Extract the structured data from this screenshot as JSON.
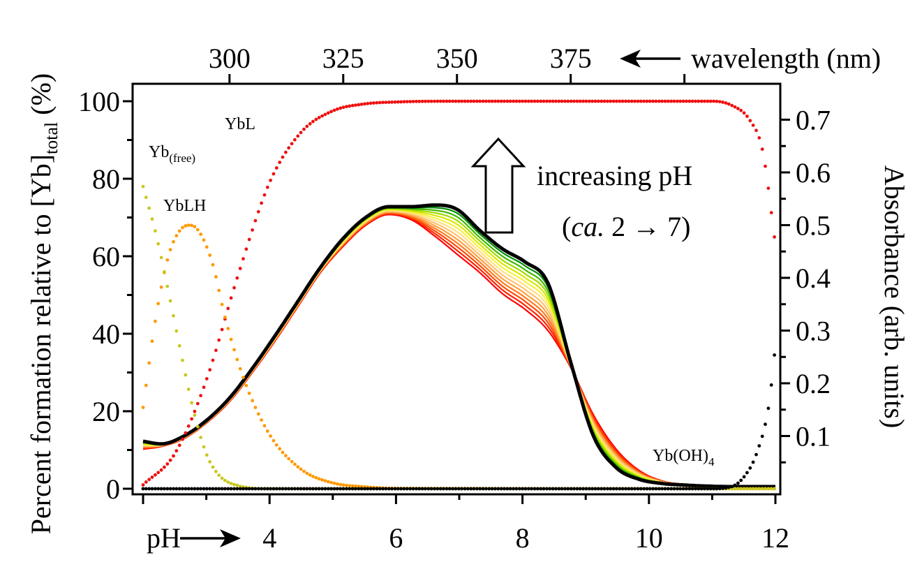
{
  "chart_data": {
    "type": "line",
    "bottom_axis": {
      "prefix_label": "pH",
      "range": [
        2,
        12
      ],
      "ticks": [
        "4",
        "6",
        "8",
        "10",
        "12"
      ],
      "tick_values": [
        4,
        6,
        8,
        10,
        12
      ]
    },
    "left_axis": {
      "label_main": "Percent formation relative to [Yb]",
      "label_sub": "total",
      "label_unit": "(%)",
      "range": [
        0,
        100
      ],
      "ticks": [
        "0",
        "20",
        "40",
        "60",
        "80",
        "100"
      ],
      "tick_values": [
        0,
        20,
        40,
        60,
        80,
        100
      ]
    },
    "top_axis": {
      "label": "wavelength (nm)",
      "ticks": [
        "300",
        "325",
        "350",
        "375"
      ],
      "tick_values": [
        300,
        325,
        350,
        375
      ],
      "range": [
        281,
        420
      ]
    },
    "right_axis": {
      "label": "Absorbance (arb. units)",
      "range": [
        0,
        0.735
      ],
      "ticks": [
        "0.1",
        "0.2",
        "0.3",
        "0.4",
        "0.5",
        "0.6",
        "0.7"
      ],
      "tick_values": [
        0.1,
        0.2,
        0.3,
        0.4,
        0.5,
        0.6,
        0.7
      ]
    },
    "annotations": {
      "increasing_line1": "increasing pH",
      "increasing_line2_italic": "ca.",
      "increasing_line2_rest": " 2 → 7)",
      "increasing_line2_open": "(",
      "yb_free_main": "Yb",
      "yb_free_sub": "(free)",
      "ybl": "YbL",
      "yblh": "YbLH",
      "yboh4_main": "Yb(OH)",
      "yboh4_sub": "4"
    },
    "speciation_series": [
      {
        "name": "YbL",
        "color": "#ee1111",
        "x": [
          2.0,
          2.5,
          3.0,
          3.5,
          4.0,
          4.5,
          5.0,
          5.5,
          6.0,
          7.0,
          9.0,
          11.0,
          11.3,
          11.6,
          11.8,
          12.0
        ],
        "y": [
          1,
          9,
          28,
          55,
          79,
          92,
          97.5,
          99.3,
          99.8,
          100,
          100,
          100,
          99,
          95,
          87,
          63
        ]
      },
      {
        "name": "YbLH",
        "color": "#ff9900",
        "x": [
          2.0,
          2.2,
          2.4,
          2.6,
          2.75,
          2.9,
          3.1,
          3.3,
          3.6,
          4.0,
          4.5,
          5.0,
          5.5,
          6.0,
          12.0
        ],
        "y": [
          21,
          44,
          60,
          67,
          68,
          66,
          58,
          44,
          28,
          14,
          5,
          1.5,
          0.5,
          0.1,
          0
        ]
      },
      {
        "name": "Yb(free)",
        "color": "#c8c820",
        "x": [
          2.0,
          2.2,
          2.4,
          2.6,
          2.8,
          3.0,
          3.2,
          3.5,
          4.0,
          12.0
        ],
        "y": [
          78,
          66,
          51,
          35,
          20,
          9,
          3.5,
          0.8,
          0,
          0
        ]
      },
      {
        "name": "Yb(OH)4",
        "color": "#000000",
        "x": [
          2.0,
          11.0,
          11.3,
          11.5,
          11.7,
          11.9,
          12.0
        ],
        "y": [
          0,
          0,
          0.5,
          3,
          9,
          22,
          37
        ]
      }
    ],
    "spectra": {
      "wavelength_nm": [
        281,
        285,
        290,
        295,
        300,
        305,
        310,
        315,
        320,
        325,
        330,
        335,
        340,
        345,
        350,
        355,
        360,
        365,
        370,
        375,
        380,
        385,
        390,
        395,
        400,
        405,
        410,
        415,
        420
      ],
      "absorbance_low_pH": [
        0.075,
        0.08,
        0.095,
        0.125,
        0.165,
        0.22,
        0.28,
        0.345,
        0.41,
        0.46,
        0.5,
        0.52,
        0.51,
        0.48,
        0.445,
        0.41,
        0.37,
        0.34,
        0.3,
        0.23,
        0.14,
        0.075,
        0.035,
        0.015,
        0.008,
        0.005,
        0.004,
        0.004,
        0.004
      ],
      "absorbance_high_pH": [
        0.09,
        0.085,
        0.1,
        0.13,
        0.172,
        0.228,
        0.29,
        0.355,
        0.42,
        0.475,
        0.515,
        0.535,
        0.535,
        0.538,
        0.53,
        0.49,
        0.455,
        0.43,
        0.39,
        0.24,
        0.1,
        0.04,
        0.018,
        0.01,
        0.007,
        0.005,
        0.004,
        0.004,
        0.004
      ],
      "count": 12,
      "colors": [
        "#ff0000",
        "#ff2200",
        "#ff4a00",
        "#ff7a20",
        "#ffa040",
        "#ffc070",
        "#ffe080",
        "#f8f040",
        "#d8e800",
        "#a0d800",
        "#40b800",
        "#009000",
        "#000000"
      ]
    }
  }
}
